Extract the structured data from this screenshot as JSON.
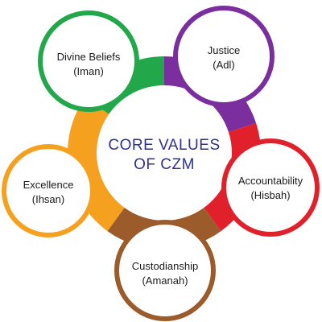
{
  "core": {
    "line1": "CORE  VALUES",
    "line2": "OF CZM",
    "color": "#2e3192"
  },
  "values": [
    {
      "line1": "Divine Beliefs",
      "line2": "(Iman)",
      "color": "#22a84a"
    },
    {
      "line1": "Justice",
      "line2": "(Adl)",
      "color": "#7b2f9e"
    },
    {
      "line1": "Accountability",
      "line2": "(Hisbah)",
      "color": "#e0202a"
    },
    {
      "line1": "Custodianship",
      "line2": "(Amanah)",
      "color": "#9b5b2a"
    },
    {
      "line1": "Excellence",
      "line2": "(Ihsan)",
      "color": "#f5a01e"
    }
  ]
}
